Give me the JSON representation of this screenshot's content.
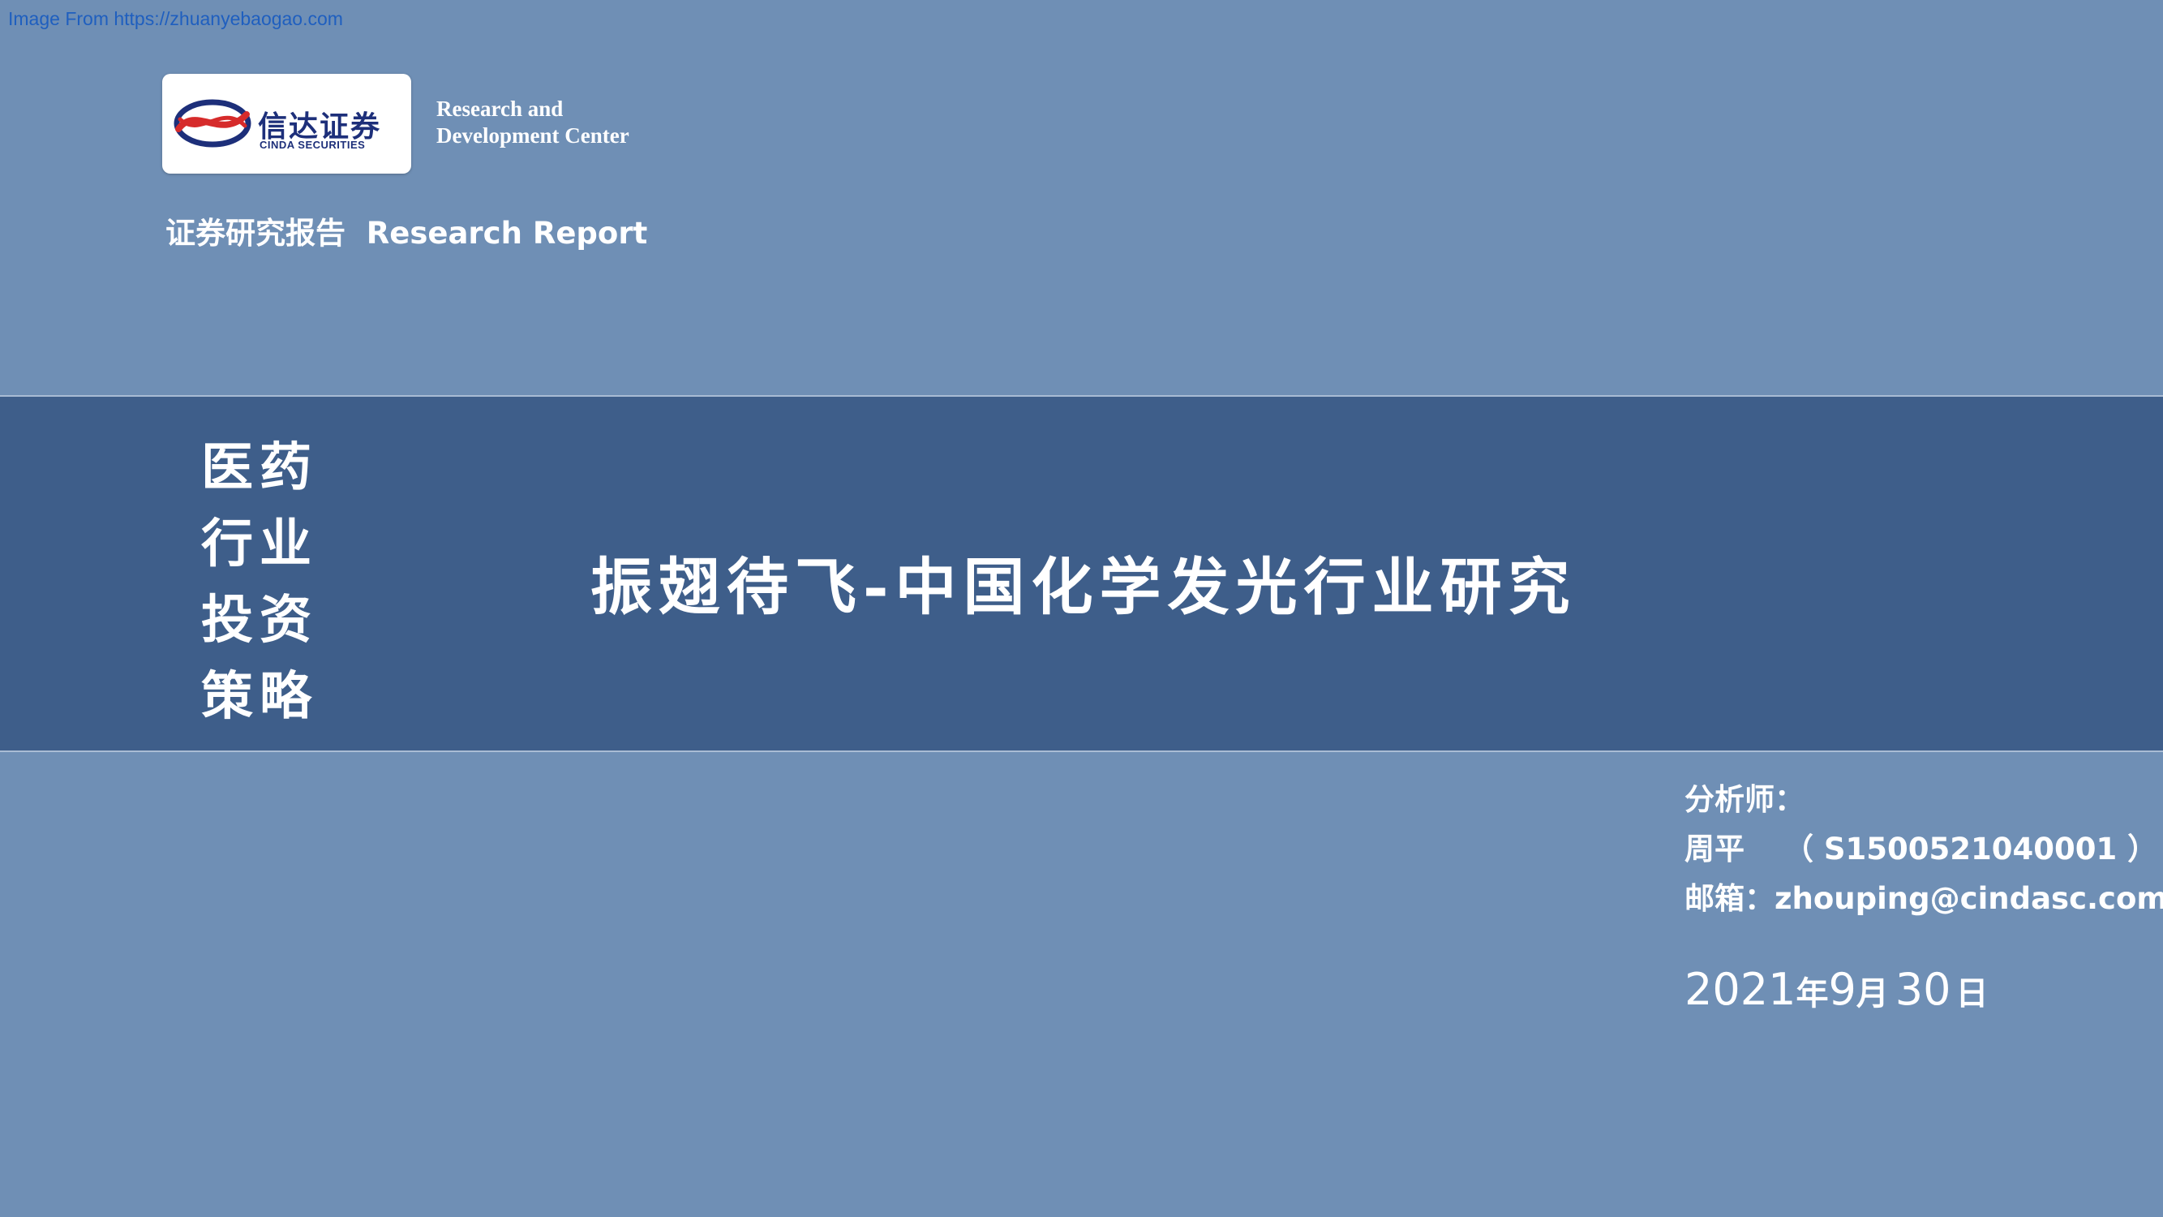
{
  "watermark": "Image From https://zhuanyebaogao.com",
  "logo": {
    "cn": "信达证券",
    "en": "CINDA SECURITIES",
    "center_line1": "Research and",
    "center_line2": "Development Center"
  },
  "report_label": "证券研究报告  Research Report",
  "category": [
    "医药",
    "行业",
    "投资",
    "策略"
  ],
  "title": "振翅待飞-中国化学发光行业研究",
  "analyst": {
    "heading": "分析师：",
    "name": "周平",
    "license": "（ S1500521040001 ）",
    "email_label": "邮箱：",
    "email": "zhouping@cindasc.com"
  },
  "date": {
    "year": "2021",
    "year_unit": "年",
    "month": "9",
    "month_unit": "月",
    "day": "30",
    "day_unit": "日"
  },
  "colors": {
    "background": "#6f8fb5",
    "band": "#3e5e8a",
    "logo_red": "#d62b2b",
    "logo_navy": "#1d2f7a"
  }
}
